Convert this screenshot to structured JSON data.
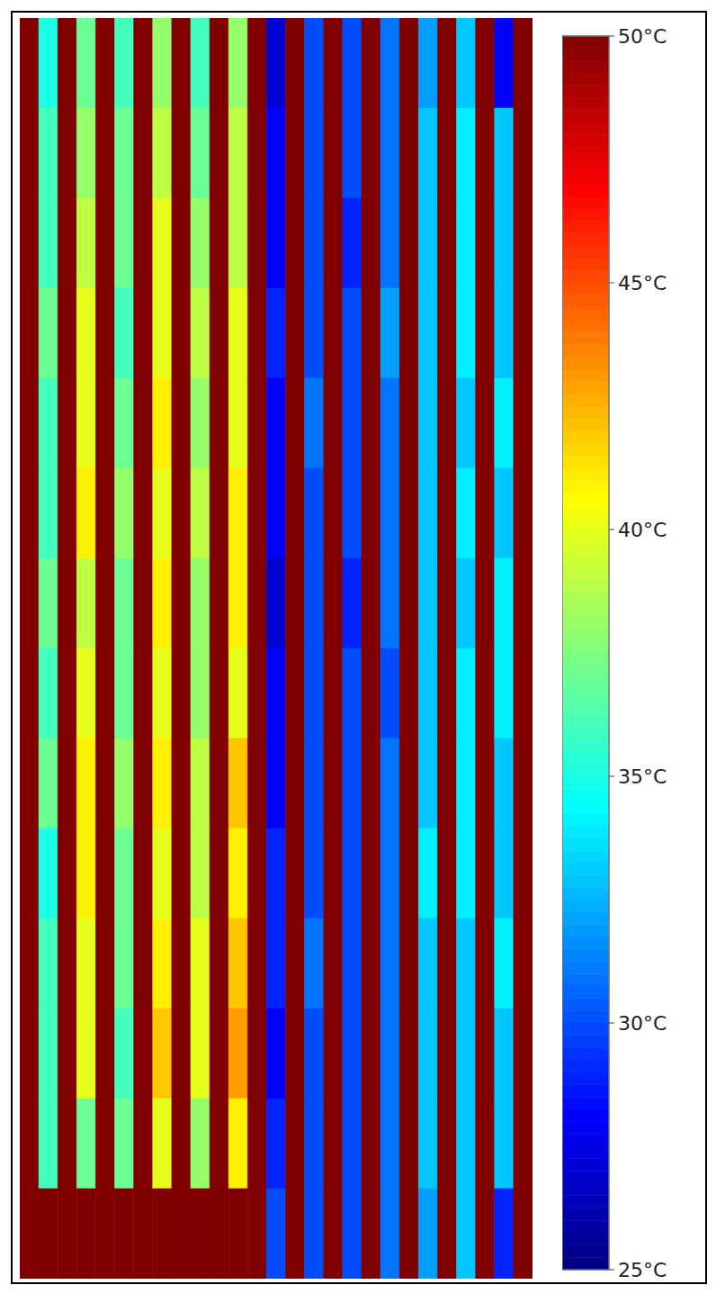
{
  "chart_data": {
    "type": "heatmap",
    "xlim": [
      0,
      27
    ],
    "ylim": [
      0,
      14
    ],
    "tick_labels": false,
    "cells": [
      [
        50,
        35,
        50,
        37,
        50,
        36,
        50,
        38,
        50,
        36,
        50,
        38,
        50,
        27,
        50,
        30,
        50,
        30,
        50,
        31,
        50,
        32,
        50,
        33,
        50,
        28,
        50
      ],
      [
        50,
        36,
        50,
        38,
        50,
        37,
        50,
        39,
        50,
        37,
        50,
        39,
        50,
        28,
        50,
        30,
        50,
        30,
        50,
        31,
        50,
        33,
        50,
        34,
        50,
        33,
        50
      ],
      [
        50,
        36,
        50,
        39,
        50,
        37,
        50,
        40,
        50,
        38,
        50,
        39,
        50,
        28,
        50,
        30,
        50,
        29,
        50,
        31,
        50,
        33,
        50,
        34,
        50,
        33,
        50
      ],
      [
        50,
        37,
        50,
        40,
        50,
        36,
        50,
        40,
        50,
        39,
        50,
        40,
        50,
        29,
        50,
        30,
        50,
        30,
        50,
        32,
        50,
        33,
        50,
        34,
        50,
        33,
        50
      ],
      [
        50,
        36,
        50,
        40,
        50,
        37,
        50,
        41,
        50,
        38,
        50,
        40,
        50,
        28,
        50,
        31,
        50,
        30,
        50,
        31,
        50,
        33,
        50,
        33,
        50,
        34,
        50
      ],
      [
        50,
        36,
        50,
        41,
        50,
        38,
        50,
        40,
        50,
        39,
        50,
        41,
        50,
        28,
        50,
        30,
        50,
        30,
        50,
        31,
        50,
        33,
        50,
        34,
        50,
        33,
        50
      ],
      [
        50,
        37,
        50,
        39,
        50,
        37,
        50,
        41,
        50,
        38,
        50,
        41,
        50,
        27,
        50,
        30,
        50,
        29,
        50,
        31,
        50,
        33,
        50,
        33,
        50,
        34,
        50
      ],
      [
        50,
        36,
        50,
        40,
        50,
        37,
        50,
        40,
        50,
        38,
        50,
        40,
        50,
        28,
        50,
        30,
        50,
        30,
        50,
        30,
        50,
        33,
        50,
        34,
        50,
        34,
        50
      ],
      [
        50,
        37,
        50,
        41,
        50,
        38,
        50,
        41,
        50,
        39,
        50,
        42,
        50,
        28,
        50,
        30,
        50,
        30,
        50,
        31,
        50,
        33,
        50,
        34,
        50,
        33,
        50
      ],
      [
        50,
        35,
        50,
        41,
        50,
        37,
        50,
        40,
        50,
        39,
        50,
        41,
        50,
        29,
        50,
        30,
        50,
        30,
        50,
        31,
        50,
        34,
        50,
        34,
        50,
        33,
        50
      ],
      [
        50,
        36,
        50,
        40,
        50,
        37,
        50,
        41,
        50,
        40,
        50,
        42,
        50,
        29,
        50,
        31,
        50,
        30,
        50,
        31,
        50,
        33,
        50,
        33,
        50,
        34,
        50
      ],
      [
        50,
        36,
        50,
        40,
        50,
        36,
        50,
        42,
        50,
        40,
        50,
        43,
        50,
        28,
        50,
        30,
        50,
        30,
        50,
        31,
        50,
        33,
        50,
        33,
        50,
        33,
        50
      ],
      [
        50,
        36,
        50,
        37,
        50,
        37,
        50,
        40,
        50,
        38,
        50,
        41,
        50,
        29,
        50,
        30,
        50,
        30,
        50,
        31,
        50,
        33,
        50,
        33,
        50,
        33,
        50
      ],
      [
        50,
        50,
        50,
        50,
        50,
        50,
        50,
        50,
        50,
        50,
        50,
        50,
        50,
        30,
        50,
        30,
        50,
        30,
        50,
        31,
        50,
        32,
        50,
        33,
        50,
        29,
        50
      ]
    ],
    "colorbar": {
      "range": [
        25,
        50
      ],
      "ticks": [
        {
          "value": 25,
          "label": "25°C"
        },
        {
          "value": 30,
          "label": "30°C"
        },
        {
          "value": 35,
          "label": "35°C"
        },
        {
          "value": 40,
          "label": "40°C"
        },
        {
          "value": 45,
          "label": "45°C"
        },
        {
          "value": 50,
          "label": "50°C"
        }
      ]
    }
  }
}
